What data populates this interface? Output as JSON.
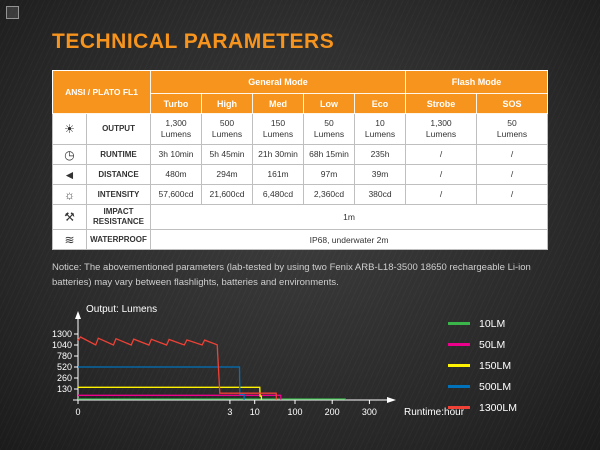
{
  "title": "TECHNICAL PARAMETERS",
  "colors": {
    "accent": "#f7941d",
    "background": "#2b2b2b"
  },
  "table": {
    "corner_label": "ANSI / PLATO FL1",
    "groups": [
      {
        "label": "General Mode",
        "span": 5
      },
      {
        "label": "Flash Mode",
        "span": 2
      }
    ],
    "modes": [
      "Turbo",
      "High",
      "Med",
      "Low",
      "Eco",
      "Strobe",
      "SOS"
    ],
    "rows": [
      {
        "icon_name": "light-output-icon",
        "icon_glyph": "☀",
        "label": "OUTPUT",
        "values": [
          "1,300\nLumens",
          "500\nLumens",
          "150\nLumens",
          "50\nLumens",
          "10\nLumens",
          "1,300\nLumens",
          "50\nLumens"
        ]
      },
      {
        "icon_name": "clock-icon",
        "icon_glyph": "◷",
        "label": "RUNTIME",
        "values": [
          "3h 10min",
          "5h 45min",
          "21h 30min",
          "68h 15min",
          "235h",
          "/",
          "/"
        ]
      },
      {
        "icon_name": "beam-distance-icon",
        "icon_glyph": "◄",
        "label": "DISTANCE",
        "values": [
          "480m",
          "294m",
          "161m",
          "97m",
          "39m",
          "/",
          "/"
        ]
      },
      {
        "icon_name": "intensity-icon",
        "icon_glyph": "☼",
        "label": "INTENSITY",
        "values": [
          "57,600cd",
          "21,600cd",
          "6,480cd",
          "2,360cd",
          "380cd",
          "/",
          "/"
        ]
      },
      {
        "icon_name": "impact-resistance-icon",
        "icon_glyph": "⚒",
        "label": "IMPACT\nRESISTANCE",
        "span_value": "1m"
      },
      {
        "icon_name": "waterproof-icon",
        "icon_glyph": "≋",
        "label": "WATERPROOF",
        "span_value": "IP68, underwater 2m"
      }
    ]
  },
  "notice": "Notice: The abovementioned parameters (lab-tested by using two Fenix ARB-L18-3500 18650 rechargeable Li-ion batteries) may vary between flashlights, batteries and environments.",
  "chart_data": {
    "type": "line",
    "title": "Output: Lumens",
    "xlabel": "Runtime:hour",
    "x_ticks": [
      0,
      3,
      10,
      100,
      200,
      300
    ],
    "y_ticks": [
      130,
      260,
      520,
      780,
      1040,
      1300
    ],
    "axis_note": "both axes use non-linear segmented scales; grid off; legend right",
    "series": [
      {
        "name": "10LM",
        "color": "#39b54a",
        "points": [
          [
            0,
            12
          ],
          [
            235,
            12
          ],
          [
            236,
            2
          ]
        ]
      },
      {
        "name": "50LM",
        "color": "#ec008c",
        "points": [
          [
            0,
            55
          ],
          [
            68,
            55
          ],
          [
            68.5,
            3
          ]
        ]
      },
      {
        "name": "150LM",
        "color": "#fff200",
        "points": [
          [
            0,
            150
          ],
          [
            21.5,
            150
          ],
          [
            22,
            45
          ],
          [
            25,
            45
          ],
          [
            25,
            3
          ]
        ]
      },
      {
        "name": "500LM",
        "color": "#0072bc",
        "points": [
          [
            0,
            520
          ],
          [
            5.7,
            520
          ],
          [
            5.8,
            65
          ],
          [
            7,
            65
          ],
          [
            7,
            3
          ]
        ]
      },
      {
        "name": "1300LM",
        "color": "#ef4136",
        "points": [
          [
            0,
            1150
          ],
          [
            0.05,
            1230
          ],
          [
            0.35,
            1040
          ],
          [
            0.4,
            1200
          ],
          [
            0.7,
            1040
          ],
          [
            0.75,
            1190
          ],
          [
            1.05,
            1040
          ],
          [
            1.1,
            1180
          ],
          [
            1.4,
            1040
          ],
          [
            1.45,
            1175
          ],
          [
            1.75,
            1040
          ],
          [
            1.8,
            1170
          ],
          [
            2.1,
            1040
          ],
          [
            2.15,
            1160
          ],
          [
            2.45,
            1040
          ],
          [
            2.5,
            1155
          ],
          [
            2.75,
            1045
          ],
          [
            2.8,
            80
          ],
          [
            58,
            80
          ],
          [
            58.5,
            3
          ]
        ]
      }
    ]
  }
}
